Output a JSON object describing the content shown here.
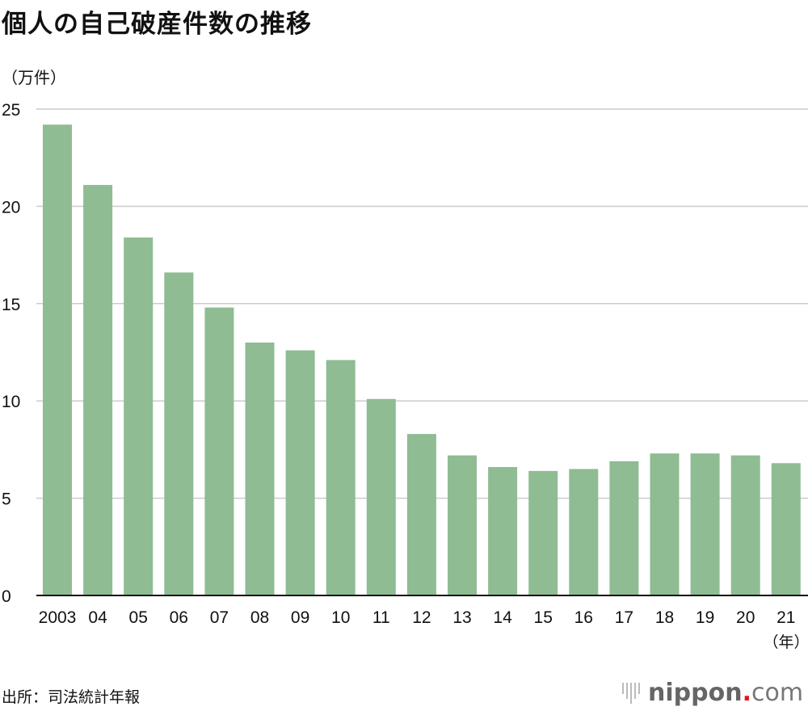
{
  "chart_data": {
    "type": "bar",
    "title": "個人の自己破産件数の推移",
    "ylabel": "（万件）",
    "xlabel": "（年）",
    "ylim": [
      0,
      25
    ],
    "yticks": [
      0,
      5,
      10,
      15,
      20,
      25
    ],
    "grid": true,
    "color": "#8fbc93",
    "categories": [
      "2003",
      "04",
      "05",
      "06",
      "07",
      "08",
      "09",
      "10",
      "11",
      "12",
      "13",
      "14",
      "15",
      "16",
      "17",
      "18",
      "19",
      "20",
      "21"
    ],
    "values": [
      24.2,
      21.1,
      18.4,
      16.6,
      14.8,
      13.0,
      12.6,
      12.1,
      10.1,
      8.3,
      7.2,
      6.6,
      6.4,
      6.5,
      6.9,
      7.3,
      7.3,
      7.2,
      6.8
    ]
  },
  "source": "出所：司法統計年報",
  "logo": {
    "main": "nippon",
    "dot": ".",
    "suffix": "com"
  }
}
